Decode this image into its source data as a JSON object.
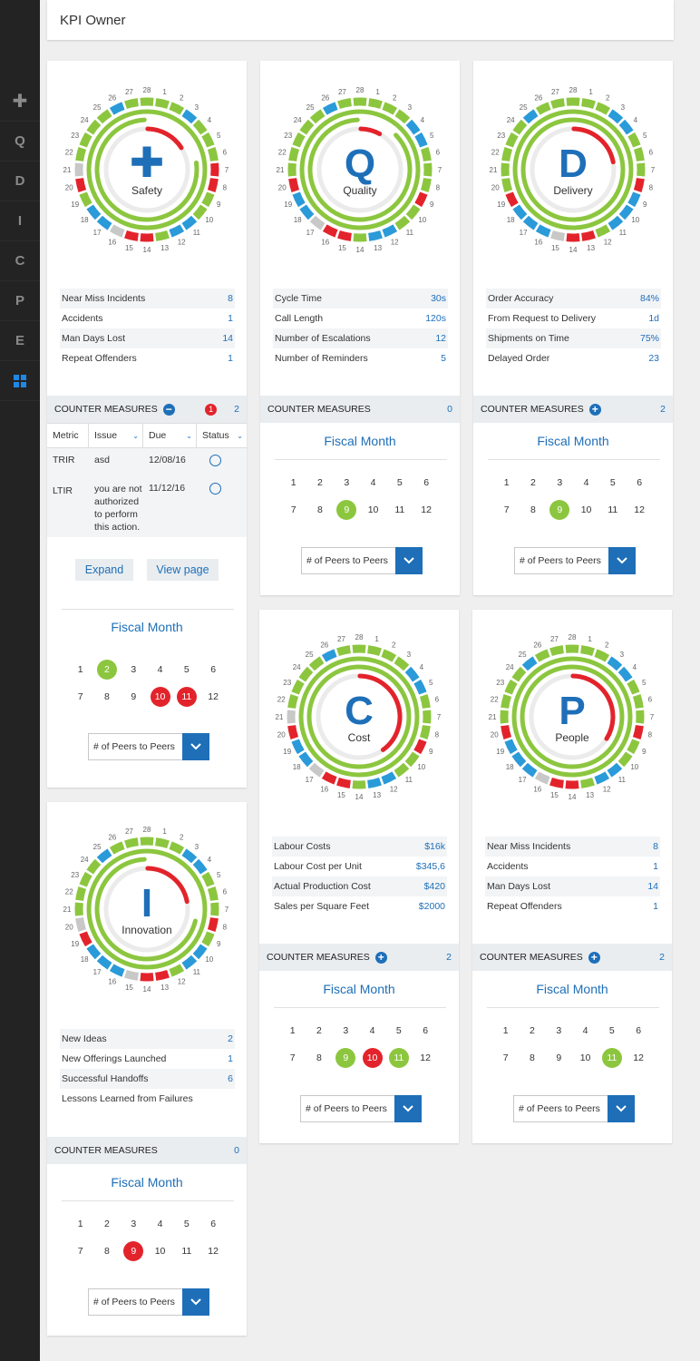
{
  "page": {
    "title": "KPI Owner"
  },
  "sidebar": [
    {
      "label": "✚"
    },
    {
      "label": "Q"
    },
    {
      "label": "D"
    },
    {
      "label": "I"
    },
    {
      "label": "C"
    },
    {
      "label": "P"
    },
    {
      "label": "E"
    },
    {
      "label": "grid"
    }
  ],
  "colors": {
    "green": "#8cc63f",
    "red": "#e3232b",
    "blue": "#2a9ad9",
    "gray": "#c8c8c8",
    "accent": "#1e6fb8"
  },
  "cards": {
    "safety": {
      "icon_text": "✚",
      "title": "Safety",
      "metrics": [
        {
          "label": "Near Miss Incidents",
          "value": "8"
        },
        {
          "label": "Accidents",
          "value": "1"
        },
        {
          "label": "Man Days Lost",
          "value": "14"
        },
        {
          "label": "Repeat Offenders",
          "value": "1"
        }
      ],
      "counter_measures": {
        "label": "COUNTER MEASURES",
        "badge": "1",
        "count": "2"
      },
      "table": {
        "headers": [
          "Metric",
          "Issue",
          "Due",
          "Status"
        ],
        "rows": [
          {
            "metric": "TRIR",
            "issue": "asd",
            "due": "12/08/16"
          },
          {
            "metric": "LTIR",
            "issue": "you are not authorized to perform this action.",
            "due": "11/12/16"
          }
        ]
      },
      "expand_label": "Expand",
      "view_label": "View page",
      "fiscal_title": "Fiscal Month",
      "months": [
        "1",
        "2",
        "3",
        "4",
        "5",
        "6",
        "7",
        "8",
        "9",
        "10",
        "11",
        "12"
      ],
      "month_status": {
        "2": "green",
        "10": "red",
        "11": "red"
      },
      "peer_select": "# of Peers to Peers",
      "ring": [
        "g",
        "g",
        "b",
        "g",
        "g",
        "g",
        "r",
        "r",
        "g",
        "g",
        "b",
        "b",
        "g",
        "r",
        "r",
        "x",
        "b",
        "b",
        "g",
        "r",
        "x",
        "g",
        "g",
        "g",
        "g",
        "b",
        "g",
        "g"
      ],
      "progress": {
        "inner_red": 0.16,
        "inner_green": 0.78
      }
    },
    "quality": {
      "icon_text": "Q",
      "title": "Quality",
      "metrics": [
        {
          "label": "Cycle Time",
          "value": "30s"
        },
        {
          "label": "Call Length",
          "value": "120s"
        },
        {
          "label": "Number of Escalations",
          "value": "12"
        },
        {
          "label": "Number of Reminders",
          "value": "5"
        }
      ],
      "counter_measures": {
        "label": "COUNTER MEASURES",
        "count": "0"
      },
      "fiscal_title": "Fiscal Month",
      "months": [
        "1",
        "2",
        "3",
        "4",
        "5",
        "6",
        "7",
        "8",
        "9",
        "10",
        "11",
        "12"
      ],
      "month_status": {
        "9": "green"
      },
      "peer_select": "# of Peers to Peers",
      "ring": [
        "g",
        "g",
        "g",
        "b",
        "b",
        "g",
        "g",
        "g",
        "r",
        "g",
        "g",
        "b",
        "b",
        "g",
        "r",
        "r",
        "x",
        "b",
        "b",
        "r",
        "g",
        "g",
        "g",
        "g",
        "g",
        "b",
        "g",
        "g"
      ],
      "progress": {
        "inner_red": 0.08,
        "inner_green": 0.88
      }
    },
    "delivery": {
      "icon_text": "D",
      "title": "Delivery",
      "metrics": [
        {
          "label": "Order Accuracy",
          "value": "84%"
        },
        {
          "label": "From Request to Delivery",
          "value": "1d"
        },
        {
          "label": "Shipments on Time",
          "value": "75%"
        },
        {
          "label": "Delayed Order",
          "value": "23"
        }
      ],
      "counter_measures": {
        "label": "COUNTER MEASURES",
        "count": "2"
      },
      "fiscal_title": "Fiscal Month",
      "months": [
        "1",
        "2",
        "3",
        "4",
        "5",
        "6",
        "7",
        "8",
        "9",
        "10",
        "11",
        "12"
      ],
      "month_status": {
        "9": "green"
      },
      "peer_select": "# of Peers to Peers",
      "ring": [
        "g",
        "g",
        "b",
        "b",
        "g",
        "g",
        "g",
        "r",
        "b",
        "b",
        "b",
        "g",
        "r",
        "r",
        "x",
        "b",
        "b",
        "b",
        "r",
        "g",
        "g",
        "g",
        "g",
        "g",
        "b",
        "g",
        "g",
        "g"
      ],
      "progress": {
        "inner_red": 0.22,
        "inner_green": 1.0
      }
    },
    "innovation": {
      "icon_text": "I",
      "title": "Innovation",
      "metrics": [
        {
          "label": "New Ideas",
          "value": "2"
        },
        {
          "label": "New Offerings Launched",
          "value": "1"
        },
        {
          "label": "Successful Handoffs",
          "value": "6"
        },
        {
          "label": "Lessons Learned from Failures",
          "value": ""
        }
      ],
      "counter_measures": {
        "label": "COUNTER MEASURES",
        "count": "0"
      },
      "fiscal_title": "Fiscal Month",
      "months": [
        "1",
        "2",
        "3",
        "4",
        "5",
        "6",
        "7",
        "8",
        "9",
        "10",
        "11",
        "12"
      ],
      "month_status": {
        "9": "red"
      },
      "peer_select": "# of Peers to Peers",
      "ring": [
        "g",
        "g",
        "b",
        "b",
        "g",
        "g",
        "g",
        "r",
        "g",
        "b",
        "b",
        "g",
        "r",
        "r",
        "x",
        "b",
        "b",
        "b",
        "r",
        "x",
        "g",
        "g",
        "g",
        "g",
        "b",
        "g",
        "g",
        "g"
      ],
      "progress": {
        "inner_red": 0.22,
        "inner_green": 0.72
      }
    },
    "cost": {
      "icon_text": "C",
      "title": "Cost",
      "metrics": [
        {
          "label": "Labour Costs",
          "value": "$16k"
        },
        {
          "label": "Labour Cost per Unit",
          "value": "$345,6"
        },
        {
          "label": "Actual Production Cost",
          "value": "$420"
        },
        {
          "label": "Sales per Square Feet",
          "value": "$2000"
        }
      ],
      "counter_measures": {
        "label": "COUNTER MEASURES",
        "count": "2"
      },
      "fiscal_title": "Fiscal Month",
      "months": [
        "1",
        "2",
        "3",
        "4",
        "5",
        "6",
        "7",
        "8",
        "9",
        "10",
        "11",
        "12"
      ],
      "month_status": {
        "9": "green",
        "10": "red",
        "11": "green"
      },
      "peer_select": "# of Peers to Peers",
      "ring": [
        "g",
        "g",
        "g",
        "b",
        "b",
        "g",
        "g",
        "g",
        "r",
        "g",
        "g",
        "b",
        "b",
        "g",
        "r",
        "r",
        "x",
        "b",
        "b",
        "r",
        "x",
        "g",
        "g",
        "g",
        "g",
        "b",
        "g",
        "g"
      ],
      "progress": {
        "inner_red": 0.4,
        "inner_green": 1.0
      }
    },
    "people": {
      "icon_text": "P",
      "title": "People",
      "metrics": [
        {
          "label": "Near Miss Incidents",
          "value": "8"
        },
        {
          "label": "Accidents",
          "value": "1"
        },
        {
          "label": "Man Days Lost",
          "value": "14"
        },
        {
          "label": "Repeat Offenders",
          "value": "1"
        }
      ],
      "counter_measures": {
        "label": "COUNTER MEASURES",
        "count": "2"
      },
      "fiscal_title": "Fiscal Month",
      "months": [
        "1",
        "2",
        "3",
        "4",
        "5",
        "6",
        "7",
        "8",
        "9",
        "10",
        "11",
        "12"
      ],
      "month_status": {
        "11": "green"
      },
      "peer_select": "# of Peers to Peers",
      "ring": [
        "g",
        "g",
        "b",
        "b",
        "g",
        "g",
        "g",
        "r",
        "g",
        "g",
        "b",
        "b",
        "g",
        "r",
        "r",
        "x",
        "b",
        "b",
        "b",
        "r",
        "g",
        "g",
        "g",
        "g",
        "b",
        "g",
        "g",
        "g"
      ],
      "progress": {
        "inner_red": 0.34,
        "inner_green": 1.0
      }
    }
  }
}
